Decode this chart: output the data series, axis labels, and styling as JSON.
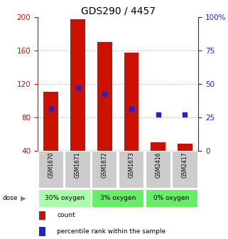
{
  "title": "GDS290 / 4457",
  "samples": [
    "GSM1670",
    "GSM1671",
    "GSM1672",
    "GSM1673",
    "GSM2416",
    "GSM2417"
  ],
  "bar_tops": [
    110,
    197,
    170,
    157,
    50,
    48
  ],
  "bar_bottom": 40,
  "percentile_values": [
    90,
    115,
    108,
    90,
    83,
    83
  ],
  "ylim_left": [
    40,
    200
  ],
  "ylim_right": [
    0,
    100
  ],
  "yticks_left": [
    40,
    80,
    120,
    160,
    200
  ],
  "yticks_right": [
    0,
    25,
    50,
    75,
    100
  ],
  "ytick_right_labels": [
    "0",
    "25",
    "50",
    "75",
    "100%"
  ],
  "bar_color": "#cc1100",
  "blue_color": "#2222cc",
  "group_labels": [
    "30% oxygen",
    "3% oxygen",
    "0% oxygen"
  ],
  "group_ranges": [
    [
      0,
      1
    ],
    [
      2,
      3
    ],
    [
      4,
      5
    ]
  ],
  "group_colors": [
    "#aaffaa",
    "#66ee66",
    "#66ee66"
  ],
  "legend_count": "count",
  "legend_pct": "percentile rank within the sample",
  "title_fontsize": 10,
  "axis_color_left": "#cc1100",
  "axis_color_right": "#2222cc",
  "grid_color": "#aaaaaa",
  "xticklabel_bg": "#cccccc",
  "bar_width": 0.55
}
